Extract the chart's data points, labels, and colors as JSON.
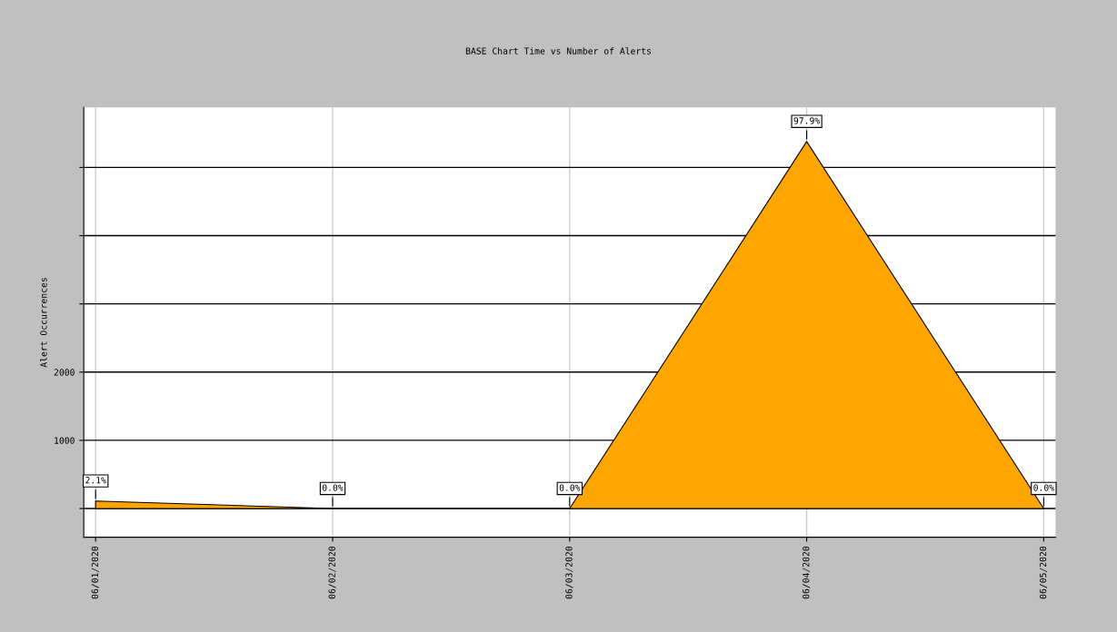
{
  "chart_data": {
    "type": "area",
    "title": "BASE Chart Time vs Number of Alerts",
    "ylabel": "Alert Occurrences",
    "categories": [
      "06/01/2020",
      "06/02/2020",
      "06/03/2020",
      "06/04/2020",
      "06/05/2020"
    ],
    "series": [
      {
        "color": "#ffa500",
        "values": [
          110,
          0,
          0,
          5380,
          0
        ]
      }
    ],
    "annotations": [
      {
        "text": "2.1%",
        "x": "06/01/2020",
        "y": 110
      },
      {
        "text": "0.0%",
        "x": "06/02/2020",
        "y": 0
      },
      {
        "text": "0.0%",
        "x": "06/03/2020",
        "y": 0
      },
      {
        "text": "97.9%",
        "x": "06/04/2020",
        "y": 5380
      },
      {
        "text": "0.0%",
        "x": "06/05/2020",
        "y": 0
      }
    ],
    "ylim": [
      -420,
      5880
    ],
    "yticks": [
      {
        "value": 0,
        "label": null
      },
      1000,
      2000,
      {
        "value": 3000,
        "label": null
      },
      {
        "value": 4000,
        "label": null
      },
      {
        "value": 5000,
        "label": null
      }
    ],
    "grid": true
  }
}
